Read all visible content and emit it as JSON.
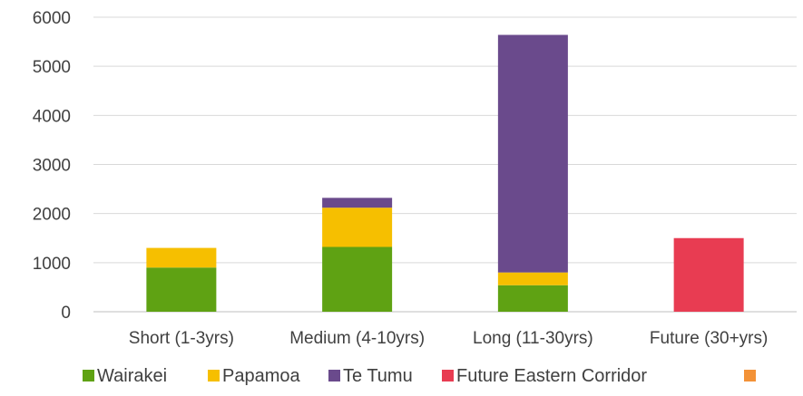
{
  "chart_data": {
    "type": "bar",
    "stacked": true,
    "title": "",
    "xlabel": "",
    "ylabel": "",
    "ylim": [
      0,
      6000
    ],
    "yticks": [
      0,
      1000,
      2000,
      3000,
      4000,
      5000,
      6000
    ],
    "grid": true,
    "legend_position": "bottom",
    "categories": [
      "Short (1-3yrs)",
      "Medium (4-10yrs)",
      "Long (11-30yrs)",
      "Future (30+yrs)"
    ],
    "series": [
      {
        "name": "Wairakei",
        "color": "#5fa213",
        "values": [
          900,
          1320,
          540,
          0
        ]
      },
      {
        "name": "Papamoa",
        "color": "#f6bf00",
        "values": [
          400,
          800,
          260,
          0
        ]
      },
      {
        "name": "Te Tumu",
        "color": "#6a4a8c",
        "values": [
          0,
          200,
          4840,
          0
        ]
      },
      {
        "name": "Future Eastern Corridor",
        "color": "#e83c52",
        "values": [
          0,
          0,
          0,
          1500
        ]
      },
      {
        "name": "",
        "color": "#f39237",
        "values": [
          0,
          0,
          0,
          0
        ]
      }
    ]
  }
}
